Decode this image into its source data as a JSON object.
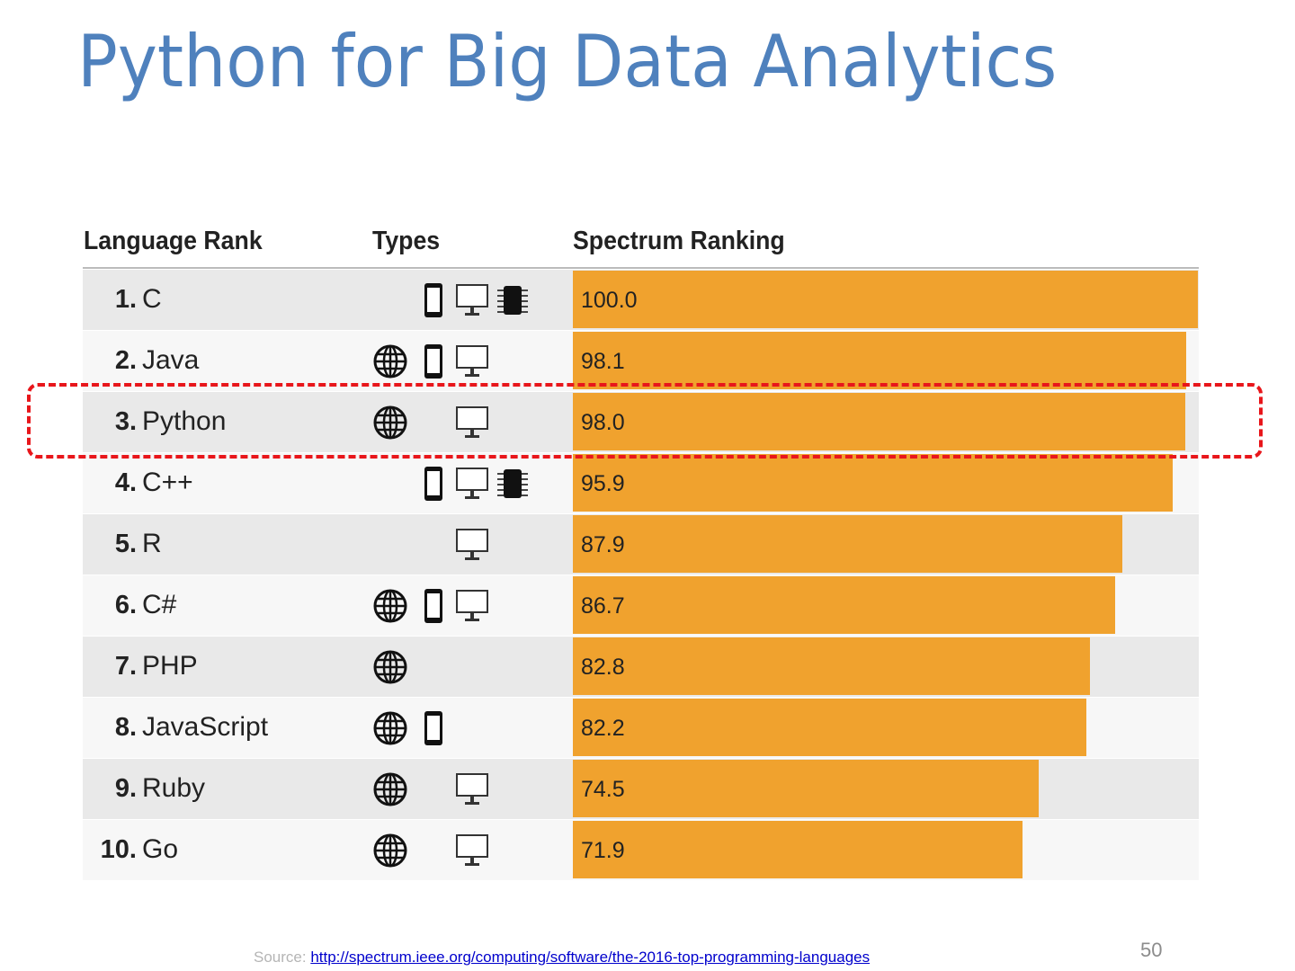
{
  "slide": {
    "title": "Python for Big Data Analytics",
    "page_number": "50",
    "source_label": "Source:",
    "source_link": "http://spectrum.ieee.org/computing/software/the-2016-top-programming-languages"
  },
  "colors": {
    "title": "#4f81bd",
    "bar": "#f0a22e",
    "highlight": "#e8161b"
  },
  "chart_data": {
    "type": "bar",
    "orientation": "horizontal",
    "columns": [
      "Language Rank",
      "Types",
      "Spectrum Ranking"
    ],
    "xlim": [
      0,
      100
    ],
    "highlighted": "Python",
    "rows": [
      {
        "rank": "1.",
        "name": "C",
        "types": [
          "phone",
          "desktop",
          "chip"
        ],
        "value": 100.0,
        "label": "100.0"
      },
      {
        "rank": "2.",
        "name": "Java",
        "types": [
          "web",
          "phone",
          "desktop"
        ],
        "value": 98.1,
        "label": "98.1"
      },
      {
        "rank": "3.",
        "name": "Python",
        "types": [
          "web",
          "desktop"
        ],
        "value": 98.0,
        "label": "98.0"
      },
      {
        "rank": "4.",
        "name": "C++",
        "types": [
          "phone",
          "desktop",
          "chip"
        ],
        "value": 95.9,
        "label": "95.9"
      },
      {
        "rank": "5.",
        "name": "R",
        "types": [
          "desktop"
        ],
        "value": 87.9,
        "label": "87.9"
      },
      {
        "rank": "6.",
        "name": "C#",
        "types": [
          "web",
          "phone",
          "desktop"
        ],
        "value": 86.7,
        "label": "86.7"
      },
      {
        "rank": "7.",
        "name": "PHP",
        "types": [
          "web"
        ],
        "value": 82.8,
        "label": "82.8"
      },
      {
        "rank": "8.",
        "name": "JavaScript",
        "types": [
          "web",
          "phone"
        ],
        "value": 82.2,
        "label": "82.2"
      },
      {
        "rank": "9.",
        "name": "Ruby",
        "types": [
          "web",
          "desktop"
        ],
        "value": 74.5,
        "label": "74.5"
      },
      {
        "rank": "10.",
        "name": "Go",
        "types": [
          "web",
          "desktop"
        ],
        "value": 71.9,
        "label": "71.9"
      }
    ]
  }
}
